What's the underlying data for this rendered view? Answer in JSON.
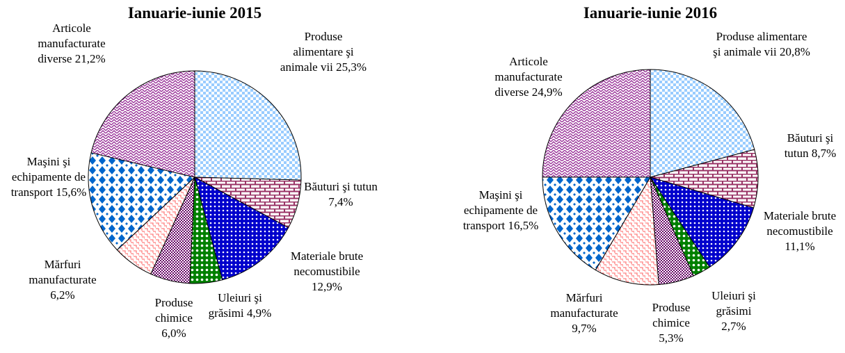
{
  "chart_data": [
    {
      "type": "pie",
      "title": "Ianuarie-iunie 2015",
      "categories": [
        "Produse alimentare şi animale vii",
        "Băuturi şi tutun",
        "Materiale brute necomustibile",
        "Uleiuri şi grăsimi",
        "Produse chimice",
        "Mărfuri manufacturate",
        "Maşini şi echipamente de transport",
        "Articole manufacturate diverse"
      ],
      "values": [
        25.3,
        7.4,
        12.9,
        4.9,
        6.0,
        6.2,
        15.6,
        21.2
      ],
      "value_labels": [
        "25,3%",
        "7,4%",
        "12,9%",
        "4,9%",
        "6,0%",
        "6,2%",
        "15,6%",
        "21,2%"
      ]
    },
    {
      "type": "pie",
      "title": "Ianuarie-iunie 2016",
      "categories": [
        "Produse alimentare şi animale vii",
        "Băuturi şi tutun",
        "Materiale brute necomustibile",
        "Uleiuri şi grăsimi",
        "Produse chimice",
        "Mărfuri manufacturate",
        "Maşini şi echipamente de transport",
        "Articole manufacturate diverse"
      ],
      "values": [
        20.8,
        8.7,
        11.1,
        2.7,
        5.3,
        9.7,
        16.5,
        24.9
      ],
      "value_labels": [
        "20,8%",
        "8,7%",
        "11,1%",
        "2,7%",
        "5,3%",
        "9,7%",
        "16,5%",
        "24,9%"
      ]
    }
  ]
}
